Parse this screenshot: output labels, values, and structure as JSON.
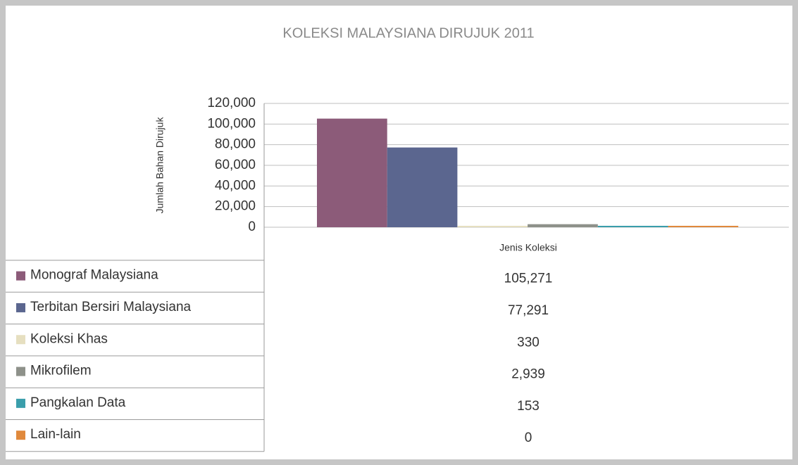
{
  "chart_data": {
    "type": "bar",
    "title": "KOLEKSI MALAYSIANA DIRUJUK 2011",
    "ylabel": "Jumlah Bahan Dirujuk",
    "categories": [
      "Jenis Koleksi"
    ],
    "series": [
      {
        "name": "Monograf Malaysiana",
        "color": "#8c5b79",
        "values": [
          105271
        ],
        "value_labels": [
          "105,271"
        ]
      },
      {
        "name": "Terbitan Bersiri Malaysiana",
        "color": "#5b668f",
        "values": [
          77291
        ],
        "value_labels": [
          "77,291"
        ]
      },
      {
        "name": "Koleksi Khas",
        "color": "#e6dfc0",
        "values": [
          330
        ],
        "value_labels": [
          "330"
        ]
      },
      {
        "name": "Mikrofilem",
        "color": "#8e918a",
        "values": [
          2939
        ],
        "value_labels": [
          "2,939"
        ]
      },
      {
        "name": "Pangkalan Data",
        "color": "#3a9eab",
        "values": [
          153
        ],
        "value_labels": [
          "153"
        ]
      },
      {
        "name": "Lain-lain",
        "color": "#e0893c",
        "values": [
          0
        ],
        "value_labels": [
          "0"
        ]
      }
    ],
    "ylim": [
      0,
      120000
    ],
    "yticks": [
      0,
      {
        "value": 20000,
        "label": "20,000"
      },
      {
        "value": 40000,
        "label": "40,000"
      },
      {
        "value": 60000,
        "label": "60,000"
      },
      {
        "value": 80000,
        "label": "80,000"
      },
      {
        "value": 100000,
        "label": "100,000"
      },
      {
        "value": 120000,
        "label": "120,000"
      }
    ],
    "grid": true
  }
}
